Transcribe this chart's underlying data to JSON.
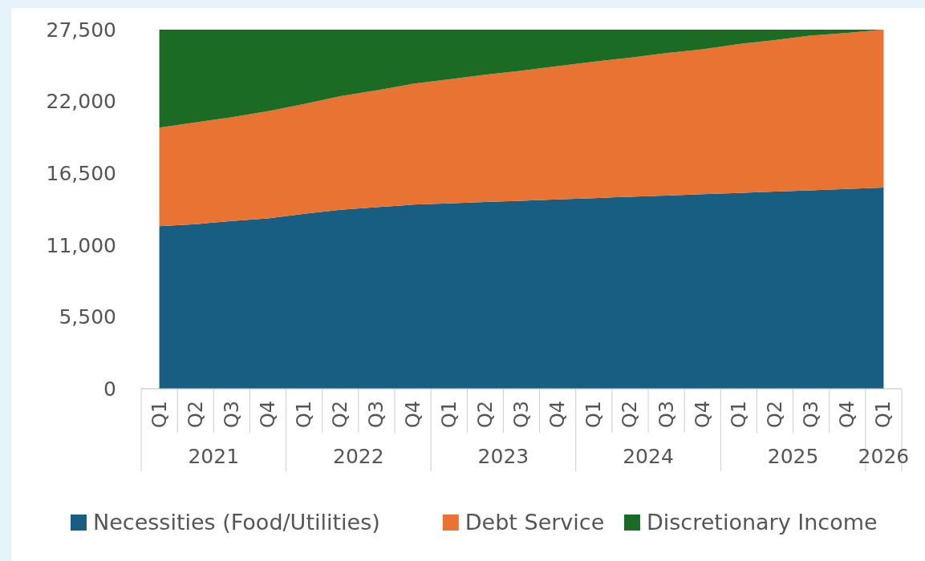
{
  "chart_data": {
    "type": "area",
    "stacked": true,
    "categories": [
      "Q1",
      "Q2",
      "Q3",
      "Q4",
      "Q1",
      "Q2",
      "Q3",
      "Q4",
      "Q1",
      "Q2",
      "Q3",
      "Q4",
      "Q1",
      "Q2",
      "Q3",
      "Q4",
      "Q1",
      "Q2",
      "Q3",
      "Q4",
      "Q1"
    ],
    "annotations": [
      "2021",
      "2022",
      "2023",
      "2024",
      "2025",
      "2026"
    ],
    "series": [
      {
        "name": "Necessities (Food/Utilities)",
        "color": "#175e82",
        "values": [
          12450,
          12600,
          12850,
          13050,
          13400,
          13700,
          13900,
          14100,
          14200,
          14300,
          14400,
          14500,
          14600,
          14700,
          14800,
          14900,
          15000,
          15100,
          15200,
          15300,
          15400
        ]
      },
      {
        "name": "Debt Service",
        "color": "#e87332",
        "values": [
          7550,
          7800,
          7950,
          8200,
          8400,
          8700,
          8950,
          9250,
          9500,
          9750,
          9950,
          10200,
          10450,
          10650,
          10900,
          11100,
          11400,
          11600,
          11850,
          11950,
          12100
        ]
      },
      {
        "name": "Discretionary Income",
        "color": "#1c6b24",
        "values": [
          7500,
          7100,
          6700,
          6250,
          5700,
          5100,
          4650,
          4150,
          3800,
          3450,
          3150,
          2800,
          2450,
          2150,
          1800,
          1500,
          1100,
          800,
          450,
          250,
          0
        ]
      }
    ],
    "ylim": [
      0,
      27500
    ],
    "yticks": [
      {
        "value": 0,
        "label": "0"
      },
      {
        "value": 5500,
        "label": "5,500"
      },
      {
        "value": 11000,
        "label": "11,000"
      },
      {
        "value": 16500,
        "label": "16,500"
      },
      {
        "value": 22000,
        "label": "22,000"
      },
      {
        "value": 27500,
        "label": "27,500"
      }
    ],
    "legend": "bottom",
    "grid": false
  }
}
